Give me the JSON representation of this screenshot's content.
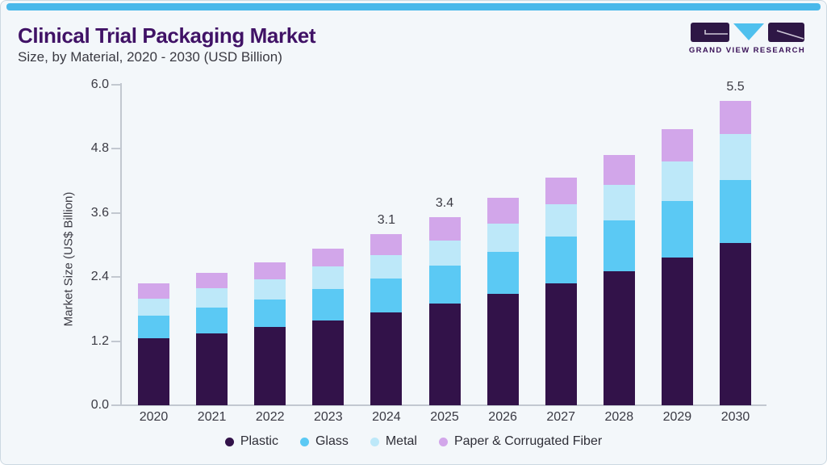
{
  "page": {
    "background": "#f3f7fa",
    "accent_bar_color": "#49b8ea",
    "border_color": "#ccd9e2"
  },
  "header": {
    "title": "Clinical Trial Packaging Market",
    "subtitle": "Size, by Material, 2020 - 2030 (USD Billion)"
  },
  "logo": {
    "text": "GRAND VIEW RESEARCH",
    "purple": "#2e1745",
    "cyan": "#4fc0ee"
  },
  "chart_data": {
    "type": "bar",
    "stacked": true,
    "title": "Clinical Trial Packaging Market Size, by Material, 2020 - 2030 (USD Billion)",
    "categories": [
      "2020",
      "2021",
      "2022",
      "2023",
      "2024",
      "2025",
      "2026",
      "2027",
      "2028",
      "2029",
      "2030"
    ],
    "series": [
      {
        "name": "Plastic",
        "color": "#321249",
        "values": [
          1.21,
          1.3,
          1.41,
          1.53,
          1.68,
          1.84,
          2.01,
          2.21,
          2.43,
          2.67,
          2.94
        ]
      },
      {
        "name": "Glass",
        "color": "#5bc9f4",
        "values": [
          0.41,
          0.46,
          0.5,
          0.57,
          0.61,
          0.69,
          0.76,
          0.84,
          0.92,
          1.02,
          1.14
        ]
      },
      {
        "name": "Metal",
        "color": "#bde8f9",
        "values": [
          0.3,
          0.35,
          0.37,
          0.41,
          0.43,
          0.45,
          0.52,
          0.59,
          0.64,
          0.72,
          0.82
        ]
      },
      {
        "name": "Paper & Corrugated Fiber",
        "color": "#d2a6ea",
        "values": [
          0.28,
          0.29,
          0.3,
          0.32,
          0.38,
          0.42,
          0.46,
          0.48,
          0.54,
          0.59,
          0.6
        ]
      }
    ],
    "bar_total_labels": {
      "2024": "3.1",
      "2025": "3.4",
      "2030": "5.5"
    },
    "ylabel": "Market Size (US$ Billion)",
    "xlabel": "",
    "ylim": [
      0,
      6.0
    ],
    "yticks": [
      "0.0",
      "1.2",
      "2.4",
      "3.6",
      "4.8",
      "6.0"
    ],
    "grid": false,
    "legend_position": "bottom"
  }
}
